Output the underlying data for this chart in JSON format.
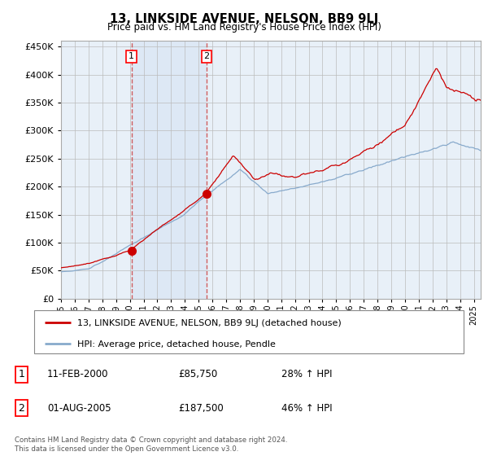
{
  "title": "13, LINKSIDE AVENUE, NELSON, BB9 9LJ",
  "subtitle": "Price paid vs. HM Land Registry's House Price Index (HPI)",
  "ylim": [
    0,
    460000
  ],
  "xlim_start": 1995.0,
  "xlim_end": 2025.5,
  "transaction1": {
    "date": 2000.12,
    "price": 85750,
    "label": "1"
  },
  "transaction2": {
    "date": 2005.58,
    "price": 187500,
    "label": "2"
  },
  "line_color_red": "#cc0000",
  "line_color_blue": "#88aacc",
  "vline_color": "#cc4444",
  "shade_color": "#dde8f5",
  "bg_color": "#e8f0f8",
  "grid_color": "#bbbbbb",
  "legend_text1": "13, LINKSIDE AVENUE, NELSON, BB9 9LJ (detached house)",
  "legend_text2": "HPI: Average price, detached house, Pendle",
  "ann1_date": "11-FEB-2000",
  "ann1_price": "£85,750",
  "ann1_hpi": "28% ↑ HPI",
  "ann2_date": "01-AUG-2005",
  "ann2_price": "£187,500",
  "ann2_hpi": "46% ↑ HPI",
  "footnote": "Contains HM Land Registry data © Crown copyright and database right 2024.\nThis data is licensed under the Open Government Licence v3.0."
}
